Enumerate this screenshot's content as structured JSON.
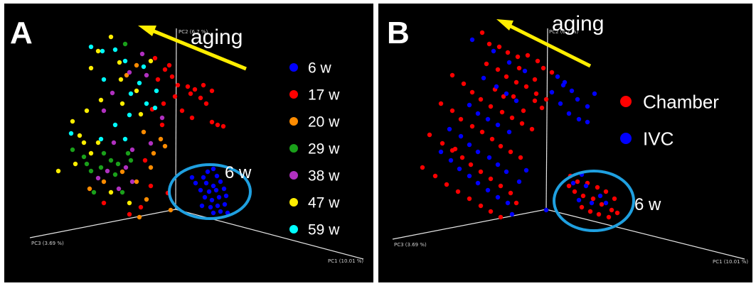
{
  "chart_data": [
    {
      "type": "scatter",
      "panel_letter": "A",
      "annotation": "aging",
      "circle_label": "6 w",
      "axes": {
        "pc1": "PC1 (10.01 %)",
        "pc2": "PC2 (6.7 %)",
        "pc3": "PC3 (3.69 %)"
      },
      "legend_placement": "right",
      "series": [
        {
          "name": "6 w",
          "color": "#0000ff",
          "points": [
            [
              292,
              242
            ],
            [
              300,
              238
            ],
            [
              286,
              250
            ],
            [
              305,
              248
            ],
            [
              275,
              258
            ],
            [
              290,
              258
            ],
            [
              300,
              262
            ],
            [
              310,
              256
            ],
            [
              282,
              268
            ],
            [
              294,
              270
            ],
            [
              304,
              268
            ],
            [
              315,
              266
            ],
            [
              288,
              278
            ],
            [
              298,
              282
            ],
            [
              308,
              278
            ],
            [
              318,
              276
            ],
            [
              284,
              290
            ],
            [
              296,
              292
            ],
            [
              306,
              290
            ],
            [
              316,
              288
            ],
            [
              300,
              300
            ],
            [
              310,
              298
            ],
            [
              270,
              250
            ],
            [
              320,
              300
            ]
          ]
        },
        {
          "name": "17 w",
          "color": "#ff0000",
          "points": [
            [
              218,
              82
            ],
            [
              232,
              98
            ],
            [
              242,
              108
            ],
            [
              264,
              122
            ],
            [
              274,
              126
            ],
            [
              286,
              120
            ],
            [
              298,
              128
            ],
            [
              290,
              146
            ],
            [
              256,
              156
            ],
            [
              270,
              166
            ],
            [
              246,
              136
            ],
            [
              230,
              146
            ],
            [
              228,
              176
            ],
            [
              214,
              154
            ],
            [
              298,
              172
            ],
            [
              306,
              176
            ],
            [
              314,
              178
            ],
            [
              212,
              262
            ],
            [
              236,
              272
            ],
            [
              198,
              292
            ],
            [
              182,
              302
            ],
            [
              146,
              286
            ],
            [
              222,
              112
            ],
            [
              282,
              138
            ],
            [
              268,
              132
            ],
            [
              238,
              92
            ],
            [
              250,
              120
            ],
            [
              204,
              226
            ]
          ]
        },
        {
          "name": "20 w",
          "color": "#ff8c00",
          "points": [
            [
              192,
              92
            ],
            [
              178,
              106
            ],
            [
              202,
              186
            ],
            [
              226,
              196
            ],
            [
              212,
              236
            ],
            [
              192,
              256
            ],
            [
              206,
              281
            ],
            [
              146,
              256
            ],
            [
              126,
              266
            ],
            [
              196,
              306
            ],
            [
              240,
              296
            ],
            [
              232,
              206
            ],
            [
              216,
              216
            ],
            [
              172,
              242
            ]
          ]
        },
        {
          "name": "29 w",
          "color": "#1aa01a",
          "points": [
            [
              102,
              211
            ],
            [
              118,
              221
            ],
            [
              128,
              241
            ],
            [
              156,
              226
            ],
            [
              180,
              216
            ],
            [
              142,
              236
            ],
            [
              162,
              246
            ],
            [
              172,
              271
            ],
            [
              132,
              271
            ],
            [
              184,
              226
            ],
            [
              176,
              62
            ],
            [
              122,
              231
            ],
            [
              146,
              216
            ],
            [
              166,
              231
            ]
          ]
        },
        {
          "name": "38 w",
          "color": "#b030c0",
          "points": [
            [
              200,
              76
            ],
            [
              182,
              102
            ],
            [
              158,
              131
            ],
            [
              146,
              156
            ],
            [
              228,
              166
            ],
            [
              212,
              202
            ],
            [
              160,
              201
            ],
            [
              177,
              236
            ],
            [
              151,
              241
            ],
            [
              138,
              251
            ],
            [
              186,
              256
            ],
            [
              167,
              266
            ],
            [
              206,
              106
            ],
            [
              186,
              211
            ]
          ]
        },
        {
          "name": "47 w",
          "color": "#ffee00",
          "points": [
            [
              156,
              52
            ],
            [
              138,
              72
            ],
            [
              128,
              96
            ],
            [
              168,
              88
            ],
            [
              192,
              128
            ],
            [
              172,
              146
            ],
            [
              142,
              141
            ],
            [
              122,
              156
            ],
            [
              102,
              171
            ],
            [
              112,
              191
            ],
            [
              138,
              201
            ],
            [
              82,
              241
            ],
            [
              156,
              271
            ],
            [
              182,
              286
            ],
            [
              212,
              86
            ],
            [
              170,
              112
            ],
            [
              118,
              201
            ],
            [
              198,
              161
            ],
            [
              128,
              216
            ],
            [
              106,
              231
            ]
          ]
        },
        {
          "name": "59 w",
          "color": "#00ffff",
          "points": [
            [
              144,
              72
            ],
            [
              162,
              70
            ],
            [
              176,
              86
            ],
            [
              202,
              94
            ],
            [
              146,
              112
            ],
            [
              184,
              132
            ],
            [
              220,
              128
            ],
            [
              218,
              152
            ],
            [
              182,
              162
            ],
            [
              162,
              176
            ],
            [
              100,
              188
            ],
            [
              142,
              196
            ],
            [
              128,
              66
            ],
            [
              196,
              117
            ],
            [
              206,
              146
            ],
            [
              176,
              196
            ]
          ]
        }
      ]
    },
    {
      "type": "scatter",
      "panel_letter": "B",
      "annotation": "aging",
      "circle_label": "6 w",
      "axes": {
        "pc1": "PC1 (10.01 %)",
        "pc2": "PC2 (6.7 %)",
        "pc3": "PC3 (3.69 %)"
      },
      "legend_placement": "right",
      "series": [
        {
          "name": "Chamber",
          "color": "#ff0000",
          "points": [
            [
              678,
              46
            ],
            [
              688,
              62
            ],
            [
              702,
              66
            ],
            [
              714,
              74
            ],
            [
              728,
              80
            ],
            [
              742,
              78
            ],
            [
              756,
              86
            ],
            [
              764,
              96
            ],
            [
              776,
              102
            ],
            [
              684,
              90
            ],
            [
              700,
              98
            ],
            [
              712,
              108
            ],
            [
              726,
              116
            ],
            [
              740,
              122
            ],
            [
              754,
              132
            ],
            [
              768,
              140
            ],
            [
              636,
              106
            ],
            [
              652,
              118
            ],
            [
              664,
              130
            ],
            [
              676,
              140
            ],
            [
              690,
              150
            ],
            [
              706,
              158
            ],
            [
              720,
              166
            ],
            [
              734,
              174
            ],
            [
              748,
              182
            ],
            [
              620,
              146
            ],
            [
              636,
              156
            ],
            [
              648,
              168
            ],
            [
              664,
              178
            ],
            [
              678,
              186
            ],
            [
              692,
              196
            ],
            [
              704,
              206
            ],
            [
              718,
              214
            ],
            [
              732,
              222
            ],
            [
              604,
              190
            ],
            [
              622,
              202
            ],
            [
              636,
              212
            ],
            [
              650,
              222
            ],
            [
              662,
              232
            ],
            [
              676,
              242
            ],
            [
              690,
              252
            ],
            [
              704,
              262
            ],
            [
              718,
              272
            ],
            [
              726,
              286
            ],
            [
              594,
              236
            ],
            [
              612,
              248
            ],
            [
              628,
              260
            ],
            [
              644,
              270
            ],
            [
              660,
              280
            ],
            [
              676,
              290
            ],
            [
              690,
              298
            ],
            [
              704,
              306
            ],
            [
              640,
              210
            ],
            [
              696,
              126
            ],
            [
              708,
              136
            ],
            [
              752,
              142
            ],
            [
              762,
              152
            ],
            [
              752,
              112
            ],
            [
              730,
              96
            ],
            [
              722,
              136
            ],
            [
              736,
              156
            ],
            [
              802,
              248
            ],
            [
              812,
              256
            ],
            [
              826,
              258
            ],
            [
              840,
              264
            ],
            [
              852,
              270
            ],
            [
              864,
              280
            ],
            [
              808,
              270
            ],
            [
              820,
              276
            ],
            [
              834,
              280
            ],
            [
              846,
              288
            ],
            [
              860,
              296
            ],
            [
              818,
              292
            ],
            [
              830,
              298
            ],
            [
              842,
              302
            ],
            [
              856,
              306
            ],
            [
              868,
              300
            ],
            [
              800,
              262
            ]
          ]
        },
        {
          "name": "IVC",
          "color": "#0000ff",
          "points": [
            [
              664,
              56
            ],
            [
              694,
              72
            ],
            [
              716,
              88
            ],
            [
              738,
              100
            ],
            [
              680,
              110
            ],
            [
              698,
              122
            ],
            [
              712,
              132
            ],
            [
              726,
              142
            ],
            [
              660,
              148
            ],
            [
              672,
              160
            ],
            [
              686,
              168
            ],
            [
              700,
              176
            ],
            [
              716,
              186
            ],
            [
              632,
              182
            ],
            [
              648,
              192
            ],
            [
              660,
              204
            ],
            [
              672,
              214
            ],
            [
              688,
              222
            ],
            [
              700,
              232
            ],
            [
              712,
              242
            ],
            [
              620,
              214
            ],
            [
              634,
              226
            ],
            [
              646,
              238
            ],
            [
              660,
              248
            ],
            [
              672,
              258
            ],
            [
              686,
              268
            ],
            [
              700,
              278
            ],
            [
              714,
              286
            ],
            [
              730,
              256
            ],
            [
              740,
              240
            ],
            [
              792,
              120
            ],
            [
              804,
              128
            ],
            [
              812,
              140
            ],
            [
              826,
              150
            ],
            [
              776,
              130
            ],
            [
              788,
              146
            ],
            [
              800,
              160
            ],
            [
              814,
              168
            ],
            [
              826,
              172
            ],
            [
              836,
              132
            ],
            [
              784,
              108
            ],
            [
              794,
              116
            ],
            [
              720,
              302
            ],
            [
              768,
              296
            ],
            [
              818,
              246
            ],
            [
              824,
              262
            ],
            [
              814,
              282
            ],
            [
              832,
              286
            ],
            [
              852,
              286
            ],
            [
              806,
              258
            ],
            [
              844,
              276
            ]
          ]
        }
      ]
    }
  ],
  "legends": {
    "a": [
      "6 w",
      "17 w",
      "20 w",
      "29 w",
      "38 w",
      "47 w",
      "59 w"
    ],
    "b": [
      "Chamber",
      "IVC"
    ]
  }
}
